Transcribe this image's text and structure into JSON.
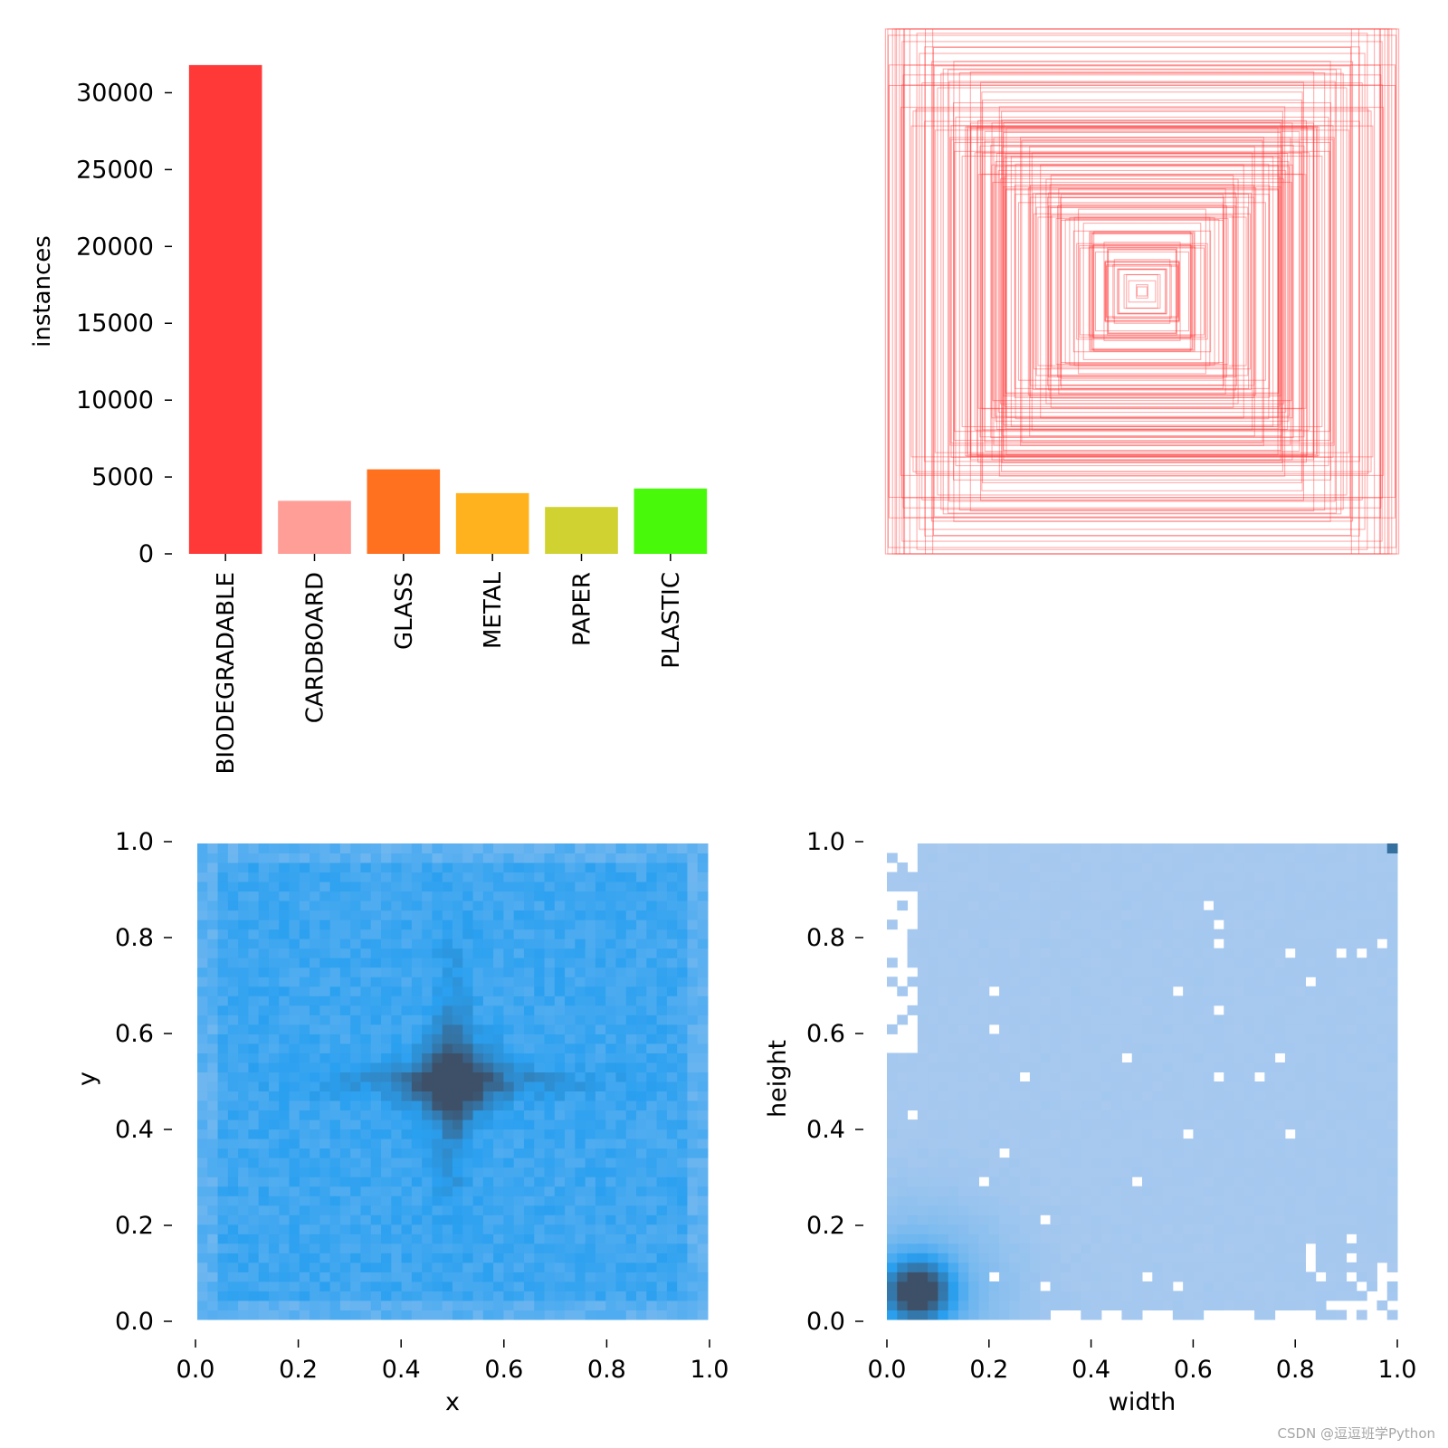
{
  "chart_data": [
    {
      "type": "bar",
      "ylabel": "instances",
      "categories": [
        "BIODEGRADABLE",
        "CARDBOARD",
        "GLASS",
        "METAL",
        "PAPER",
        "PLASTIC"
      ],
      "values": [
        31800,
        3450,
        5500,
        3950,
        3050,
        4250
      ],
      "colors": [
        "#ff3838",
        "#ff9d97",
        "#ff701f",
        "#ffb21d",
        "#cfd231",
        "#48f90a"
      ],
      "yticks": [
        "0",
        "5000",
        "10000",
        "15000",
        "20000",
        "25000",
        "30000"
      ],
      "ylim": [
        0,
        32500
      ]
    },
    {
      "type": "box-overlay",
      "description_color": "#ff3838"
    },
    {
      "type": "heatmap",
      "xlabel": "x",
      "ylabel": "y",
      "xlim": [
        0,
        1
      ],
      "ylim": [
        0,
        1
      ],
      "xticks": [
        "0.0",
        "0.2",
        "0.4",
        "0.6",
        "0.8",
        "1.0"
      ],
      "yticks": [
        "0.0",
        "0.2",
        "0.4",
        "0.6",
        "0.8",
        "1.0"
      ],
      "colormap": [
        "#a8c9f0",
        "#2aa0f0",
        "#3d5068"
      ]
    },
    {
      "type": "heatmap",
      "xlabel": "width",
      "ylabel": "height",
      "xlim": [
        0,
        1
      ],
      "ylim": [
        0,
        1
      ],
      "xticks": [
        "0.0",
        "0.2",
        "0.4",
        "0.6",
        "0.8",
        "1.0"
      ],
      "yticks": [
        "0.0",
        "0.2",
        "0.4",
        "0.6",
        "0.8",
        "1.0"
      ],
      "colormap": [
        "#aecbef",
        "#2aa0f0",
        "#3d5068"
      ]
    }
  ],
  "watermark": "CSDN @逗逗班学Python"
}
